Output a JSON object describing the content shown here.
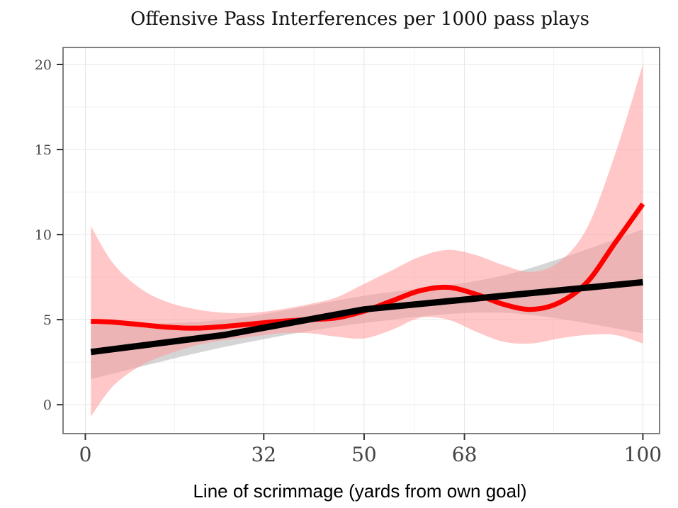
{
  "chart_data": {
    "type": "line",
    "title": "Offensive Pass Interferences per 1000 pass plays",
    "xlabel": "Line of scrimmage (yards from own goal)",
    "ylabel": "",
    "xlim": [
      -4,
      103
    ],
    "ylim": [
      -1.7,
      21.0
    ],
    "x_ticks": [
      0,
      32,
      50,
      68,
      100
    ],
    "y_ticks": [
      0,
      5,
      10,
      15,
      20
    ],
    "grid": true,
    "series": [
      {
        "kind": "smooth",
        "color": "#ff0000",
        "ribbon_color": "#ff9999",
        "x": [
          1,
          5,
          10,
          15,
          20,
          25,
          30,
          35,
          40,
          45,
          50,
          55,
          60,
          65,
          70,
          75,
          80,
          85,
          90,
          95,
          100
        ],
        "y": [
          4.9,
          4.85,
          4.7,
          4.55,
          4.5,
          4.6,
          4.75,
          4.9,
          5.0,
          5.1,
          5.5,
          6.1,
          6.7,
          6.9,
          6.5,
          5.9,
          5.6,
          6.0,
          7.2,
          9.5,
          11.8
        ],
        "lower": [
          -0.7,
          1.1,
          2.3,
          3.0,
          3.5,
          3.8,
          4.0,
          4.2,
          4.2,
          4.0,
          3.9,
          4.4,
          5.1,
          5.0,
          4.3,
          3.7,
          3.6,
          3.9,
          4.1,
          4.1,
          3.6
        ],
        "upper": [
          10.5,
          8.3,
          6.8,
          6.0,
          5.6,
          5.4,
          5.4,
          5.6,
          5.9,
          6.3,
          7.1,
          7.9,
          8.7,
          9.1,
          8.8,
          8.2,
          7.8,
          8.4,
          10.4,
          14.7,
          20.0
        ]
      },
      {
        "kind": "linear",
        "color": "#000000",
        "ribbon_color": "#b3b3b3",
        "x": [
          1,
          25,
          50,
          75,
          100
        ],
        "y": [
          3.1,
          4.1,
          5.6,
          6.4,
          7.2
        ],
        "lower": [
          1.5,
          3.4,
          4.8,
          5.4,
          4.2
        ],
        "upper": [
          4.7,
          5.0,
          6.4,
          7.6,
          10.3
        ]
      }
    ]
  }
}
